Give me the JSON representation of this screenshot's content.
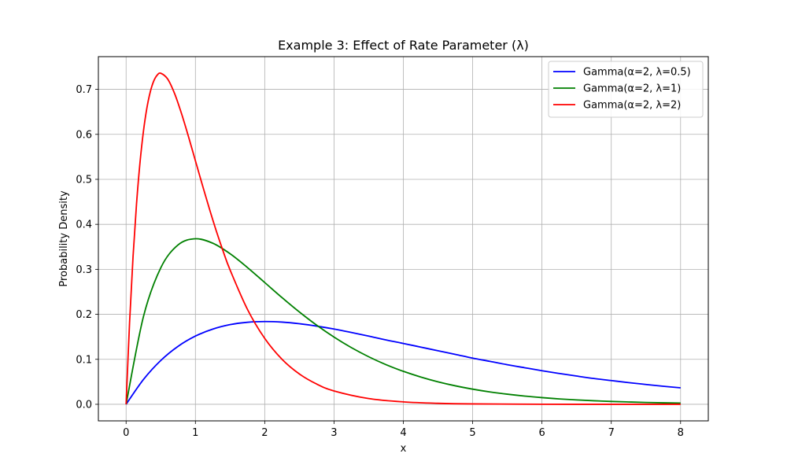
{
  "chart_data": {
    "type": "line",
    "title": "Example 3: Effect of Rate Parameter (λ)",
    "xlabel": "x",
    "ylabel": "Probability Density",
    "xlim": [
      -0.4,
      8.4
    ],
    "ylim": [
      -0.0368,
      0.7727
    ],
    "xticks": [
      0,
      1,
      2,
      3,
      4,
      5,
      6,
      7,
      8
    ],
    "yticks": [
      0.0,
      0.1,
      0.2,
      0.3,
      0.4,
      0.5,
      0.6,
      0.7
    ],
    "grid": true,
    "legend_position": "top-right",
    "series": [
      {
        "name": "Gamma(α=2, λ=0.5)",
        "color": "#0000ff",
        "x": [
          0,
          0.25,
          0.5,
          0.75,
          1,
          1.25,
          1.5,
          1.75,
          2,
          2.25,
          2.5,
          2.75,
          3,
          3.25,
          3.5,
          3.75,
          4,
          4.25,
          4.5,
          4.75,
          5,
          5.25,
          5.5,
          5.75,
          6,
          6.25,
          6.5,
          6.75,
          7,
          7.25,
          7.5,
          7.75,
          8
        ],
        "y": [
          0,
          0.0551,
          0.0974,
          0.1289,
          0.1516,
          0.1671,
          0.1771,
          0.1823,
          0.1839,
          0.1827,
          0.1791,
          0.1738,
          0.1673,
          0.1597,
          0.1516,
          0.143,
          0.1353,
          0.1272,
          0.119,
          0.111,
          0.1026,
          0.0955,
          0.088,
          0.0813,
          0.0747,
          0.0685,
          0.0628,
          0.0574,
          0.0528,
          0.0482,
          0.0441,
          0.0401,
          0.0366
        ]
      },
      {
        "name": "Gamma(α=2, λ=1)",
        "color": "#008000",
        "x": [
          0,
          0.25,
          0.5,
          0.75,
          1,
          1.25,
          1.5,
          1.75,
          2,
          2.25,
          2.5,
          2.75,
          3,
          3.25,
          3.5,
          3.75,
          4,
          4.25,
          4.5,
          4.75,
          5,
          5.25,
          5.5,
          5.75,
          6,
          6.25,
          6.5,
          6.75,
          7,
          7.25,
          7.5,
          7.75,
          8
        ],
        "y": [
          0,
          0.1947,
          0.3033,
          0.3543,
          0.3679,
          0.3581,
          0.3347,
          0.3041,
          0.2707,
          0.2371,
          0.2052,
          0.1758,
          0.1494,
          0.126,
          0.1057,
          0.0881,
          0.0733,
          0.0607,
          0.05,
          0.0411,
          0.0337,
          0.0275,
          0.0225,
          0.0183,
          0.0149,
          0.012,
          0.0098,
          0.0079,
          0.0064,
          0.0052,
          0.0041,
          0.0033,
          0.0027
        ]
      },
      {
        "name": "Gamma(α=2, λ=2)",
        "color": "#ff0000",
        "x": [
          0,
          0.05,
          0.1,
          0.15,
          0.2,
          0.25,
          0.3,
          0.35,
          0.4,
          0.45,
          0.5,
          0.6,
          0.7,
          0.8,
          0.9,
          1,
          1.1,
          1.2,
          1.3,
          1.4,
          1.5,
          1.75,
          2,
          2.25,
          2.5,
          2.75,
          3,
          3.5,
          4,
          4.5,
          5,
          6,
          7,
          8
        ],
        "y": [
          0,
          0.181,
          0.3275,
          0.4445,
          0.5363,
          0.6065,
          0.6586,
          0.6951,
          0.7189,
          0.7319,
          0.7358,
          0.7229,
          0.6905,
          0.6459,
          0.595,
          0.5413,
          0.4877,
          0.4354,
          0.3859,
          0.3403,
          0.2987,
          0.2113,
          0.1465,
          0.1,
          0.0674,
          0.045,
          0.0297,
          0.0128,
          0.0054,
          0.0022,
          0.0009,
          0.0001,
          0.0,
          0.0
        ]
      }
    ]
  }
}
